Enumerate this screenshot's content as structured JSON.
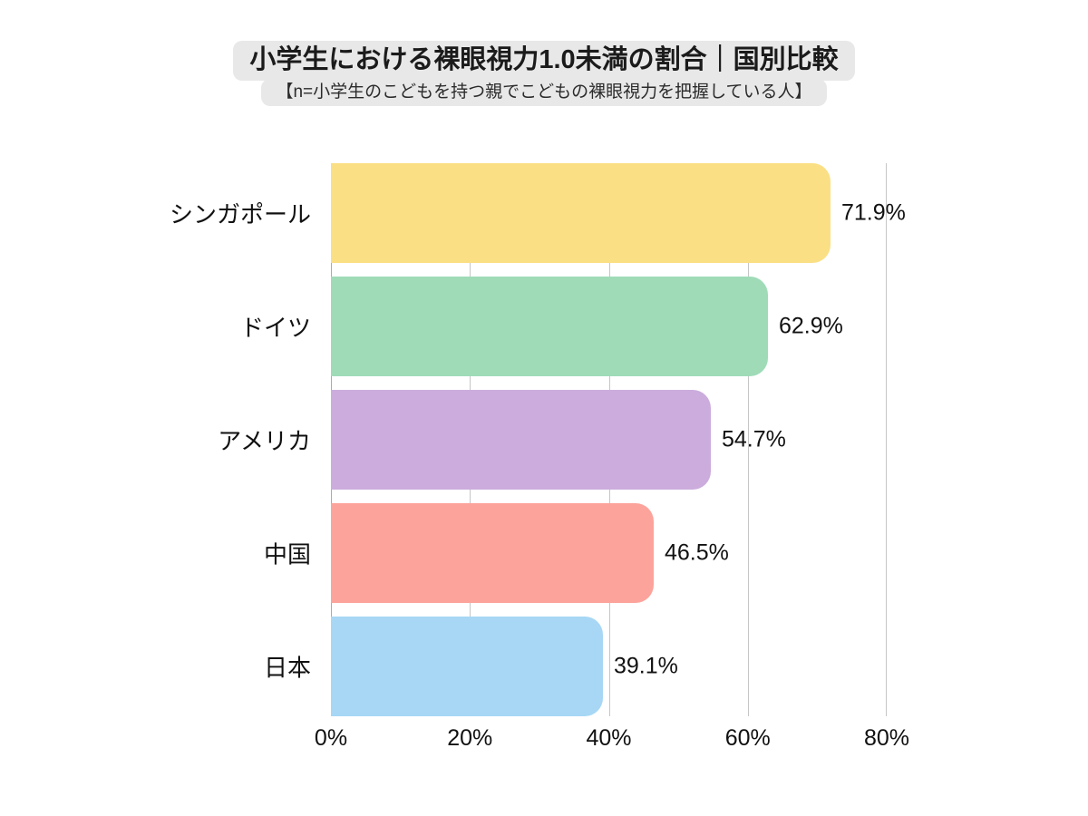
{
  "header": {
    "title": "小学生における裸眼視力1.0未満の割合｜国別比較",
    "subtitle": "【n=小学生のこどもを持つ親でこどもの裸眼視力を把握している人】"
  },
  "chart_data": {
    "type": "bar",
    "orientation": "horizontal",
    "title": "小学生における裸眼視力1.0未満の割合｜国別比較",
    "subtitle": "【n=小学生のこどもを持つ親でこどもの裸眼視力を把握している人】",
    "categories": [
      "シンガポール",
      "ドイツ",
      "アメリカ",
      "中国",
      "日本"
    ],
    "values": [
      71.9,
      62.9,
      54.7,
      46.5,
      39.1
    ],
    "value_labels": [
      "71.9%",
      "62.9%",
      "54.7%",
      "46.5%",
      "39.1%"
    ],
    "bar_colors": [
      "#fbdf84",
      "#9fdbb7",
      "#cbacdc",
      "#fca39b",
      "#a7d7f5"
    ],
    "xlim": [
      0,
      80
    ],
    "x_ticks": [
      0,
      20,
      40,
      60,
      80
    ],
    "x_tick_labels": [
      "0%",
      "20%",
      "40%",
      "60%",
      "80%"
    ],
    "grid": true,
    "legend": false,
    "colors": {
      "background": "#ffffff",
      "pill_background": "#e8e8e8",
      "gridline": "#c6c6c6",
      "zero_line": "#ababab",
      "text": "#111111"
    }
  }
}
